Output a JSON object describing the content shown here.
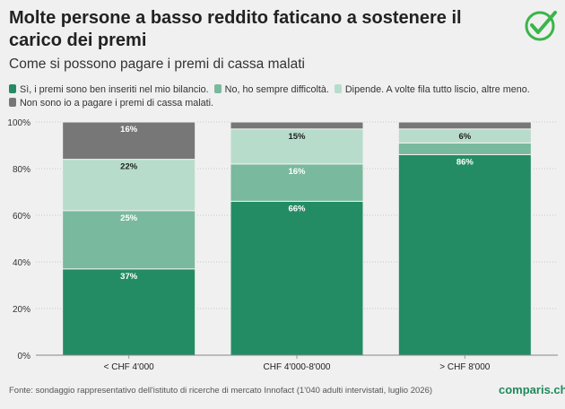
{
  "header": {
    "title": "Molte persone a basso reddito faticano a sostenere il carico dei premi",
    "subtitle": "Come si possono pagare i premi di cassa malati"
  },
  "footer": {
    "source": "Fonte: sondaggio rappresentativo dell'istituto di ricerche di mercato Innofact (1'040 adulti intervistati, luglio 2026)",
    "brand": "comparis.ch"
  },
  "logo": {
    "icon": "check-circle-icon",
    "color": "#3ab54a"
  },
  "colors": {
    "s1": "#248c65",
    "s2": "#79b99e",
    "s3": "#b8dccb",
    "s4": "#777777"
  },
  "chart_data": {
    "type": "bar",
    "stacked": true,
    "categories": [
      "< CHF 4'000",
      "CHF 4'000-8'000",
      "> CHF 8'000"
    ],
    "series": [
      {
        "name": "Sì, i premi sono ben inseriti nel mio bilancio.",
        "values": [
          37,
          66,
          86
        ],
        "labels": [
          "37%",
          "66%",
          "86%"
        ]
      },
      {
        "name": "No, ho sempre difficoltà.",
        "values": [
          25,
          16,
          5
        ],
        "labels": [
          "25%",
          "16%",
          ""
        ]
      },
      {
        "name": "Dipende. A volte fila tutto liscio, altre meno.",
        "values": [
          22,
          15,
          6
        ],
        "labels": [
          "22%",
          "15%",
          "6%"
        ]
      },
      {
        "name": "Non sono io a pagare i premi di cassa malati.",
        "values": [
          16,
          3,
          3
        ],
        "labels": [
          "16%",
          "",
          ""
        ]
      }
    ],
    "ylim": [
      0,
      100
    ],
    "yticks": [
      0,
      20,
      40,
      60,
      80,
      100
    ],
    "ytick_labels": [
      "0%",
      "20%",
      "40%",
      "60%",
      "80%",
      "100%"
    ],
    "grid": true,
    "legend_position": "top"
  }
}
